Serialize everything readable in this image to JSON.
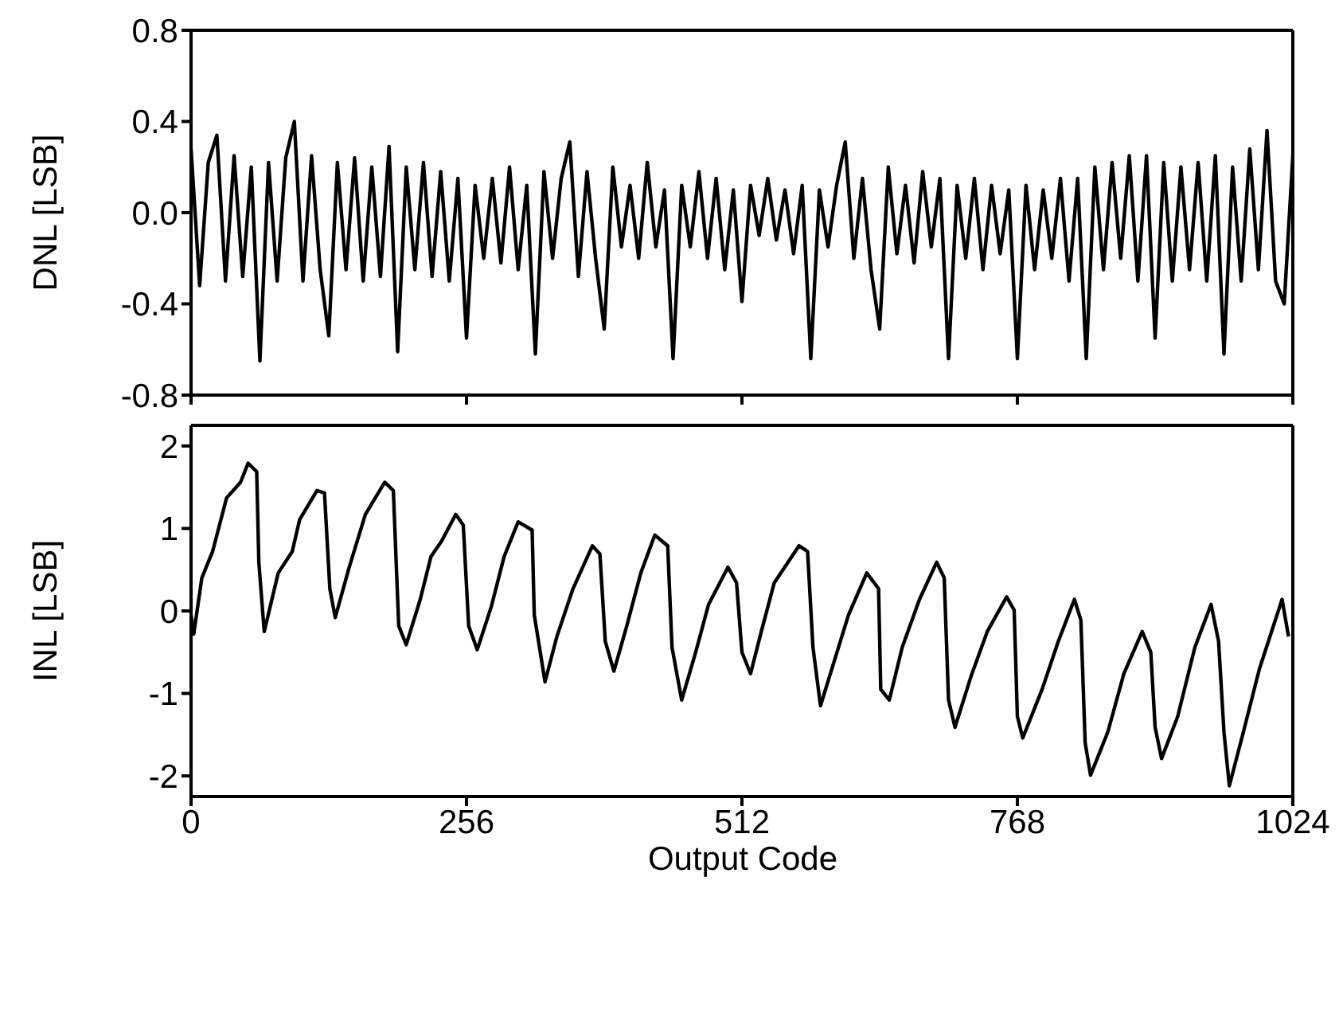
{
  "chart_data": [
    {
      "type": "line",
      "ylabel": "DNL [LSB]",
      "tick_labels": "y",
      "x": [
        0,
        8,
        16,
        24,
        32,
        40,
        48,
        56,
        64,
        72,
        80,
        88,
        96,
        104,
        112,
        120,
        128,
        136,
        144,
        152,
        160,
        168,
        176,
        184,
        192,
        200,
        208,
        216,
        224,
        232,
        240,
        248,
        256,
        264,
        272,
        280,
        288,
        296,
        304,
        312,
        320,
        328,
        336,
        344,
        352,
        360,
        368,
        376,
        384,
        392,
        400,
        408,
        416,
        424,
        432,
        440,
        448,
        456,
        464,
        472,
        480,
        488,
        496,
        504,
        512,
        520,
        528,
        536,
        544,
        552,
        560,
        568,
        576,
        584,
        592,
        600,
        608,
        616,
        624,
        632,
        640,
        648,
        656,
        664,
        672,
        680,
        688,
        696,
        704,
        712,
        720,
        728,
        736,
        744,
        752,
        760,
        768,
        776,
        784,
        792,
        800,
        808,
        816,
        824,
        832,
        840,
        848,
        856,
        864,
        872,
        880,
        888,
        896,
        904,
        912,
        920,
        928,
        936,
        944,
        952,
        960,
        968,
        976,
        984,
        992,
        1000,
        1008,
        1016,
        1024
      ],
      "series": [
        {
          "color": "#000000",
          "values": [
            0.28,
            -0.32,
            0.22,
            0.34,
            -0.3,
            0.25,
            -0.28,
            0.2,
            -0.65,
            0.22,
            -0.3,
            0.24,
            0.4,
            -0.3,
            0.25,
            -0.25,
            -0.54,
            0.22,
            -0.25,
            0.24,
            -0.3,
            0.2,
            -0.28,
            0.29,
            -0.61,
            0.2,
            -0.25,
            0.22,
            -0.28,
            0.18,
            -0.3,
            0.15,
            -0.55,
            0.12,
            -0.2,
            0.15,
            -0.22,
            0.2,
            -0.25,
            0.12,
            -0.62,
            0.18,
            -0.2,
            0.15,
            0.31,
            -0.28,
            0.18,
            -0.2,
            -0.51,
            0.2,
            -0.15,
            0.12,
            -0.2,
            0.22,
            -0.15,
            0.1,
            -0.64,
            0.12,
            -0.15,
            0.18,
            -0.2,
            0.15,
            -0.25,
            0.1,
            -0.39,
            0.12,
            -0.1,
            0.15,
            -0.12,
            0.1,
            -0.18,
            0.12,
            -0.64,
            0.1,
            -0.15,
            0.12,
            0.31,
            -0.2,
            0.15,
            -0.25,
            -0.51,
            0.2,
            -0.18,
            0.12,
            -0.22,
            0.18,
            -0.15,
            0.15,
            -0.64,
            0.12,
            -0.2,
            0.15,
            -0.25,
            0.12,
            -0.18,
            0.1,
            -0.64,
            0.12,
            -0.25,
            0.1,
            -0.2,
            0.15,
            -0.3,
            0.15,
            -0.64,
            0.2,
            -0.25,
            0.22,
            -0.2,
            0.25,
            -0.3,
            0.25,
            -0.55,
            0.22,
            -0.3,
            0.2,
            -0.25,
            0.22,
            -0.3,
            0.25,
            -0.62,
            0.2,
            -0.3,
            0.28,
            -0.25,
            0.36,
            -0.3,
            -0.4,
            0.25
          ]
        }
      ],
      "xlim": [
        0,
        1024
      ],
      "xticks": [
        0,
        256,
        512,
        768,
        1024
      ],
      "ylim": [
        -0.8,
        0.8
      ],
      "yticks": [
        {
          "value": -0.8,
          "label": "-0.8"
        },
        {
          "value": -0.4,
          "label": "-0.4"
        },
        {
          "value": 0,
          "label": "0.0"
        },
        {
          "value": 0.4,
          "label": "0.4"
        },
        {
          "value": 0.8,
          "label": "0.8"
        }
      ]
    },
    {
      "type": "line",
      "ylabel": "INL [LSB]",
      "xlabel": "Output Code",
      "x": [
        0,
        2.5,
        10,
        20,
        33,
        46,
        53,
        61,
        63,
        68,
        81,
        94,
        101,
        117,
        124,
        129,
        134,
        147,
        162,
        180,
        188,
        193,
        200,
        213,
        223,
        233,
        246,
        253,
        258,
        266,
        279,
        291,
        304,
        317,
        319,
        329,
        340,
        355,
        373,
        380,
        385,
        393,
        405,
        418,
        431,
        443,
        447,
        456,
        469,
        481,
        499,
        507,
        512,
        520,
        530,
        542,
        565,
        573,
        578,
        585,
        598,
        611,
        628,
        639,
        641,
        649,
        661,
        677,
        693,
        700,
        704,
        710,
        725,
        740,
        758,
        765,
        768,
        773,
        791,
        806,
        821,
        827,
        831,
        836,
        852,
        867,
        884,
        892,
        896,
        902,
        917,
        933,
        948,
        955,
        960,
        965,
        978,
        993,
        1014,
        1020
      ],
      "series": [
        {
          "color": "#000000",
          "values": [
            -0.05,
            -0.28,
            0.4,
            0.72,
            1.37,
            1.56,
            1.79,
            1.69,
            0.59,
            -0.25,
            0.46,
            0.72,
            1.11,
            1.46,
            1.43,
            0.27,
            -0.08,
            0.53,
            1.17,
            1.56,
            1.46,
            -0.18,
            -0.41,
            0.14,
            0.66,
            0.85,
            1.17,
            1.04,
            -0.18,
            -0.47,
            0.05,
            0.66,
            1.08,
            0.98,
            -0.05,
            -0.86,
            -0.31,
            0.27,
            0.79,
            0.69,
            -0.37,
            -0.73,
            -0.18,
            0.46,
            0.92,
            0.79,
            -0.44,
            -1.08,
            -0.5,
            0.08,
            0.53,
            0.34,
            -0.5,
            -0.76,
            -0.25,
            0.34,
            0.79,
            0.72,
            -0.44,
            -1.15,
            -0.6,
            -0.05,
            0.46,
            0.27,
            -0.95,
            -1.08,
            -0.44,
            0.14,
            0.59,
            0.4,
            -1.08,
            -1.41,
            -0.79,
            -0.25,
            0.17,
            0.01,
            -1.28,
            -1.54,
            -0.95,
            -0.37,
            0.14,
            -0.11,
            -1.6,
            -1.99,
            -1.47,
            -0.76,
            -0.25,
            -0.5,
            -1.41,
            -1.79,
            -1.28,
            -0.44,
            0.08,
            -0.37,
            -1.47,
            -2.12,
            -1.47,
            -0.7,
            0.14,
            -0.31
          ]
        }
      ],
      "xlim": [
        0,
        1024
      ],
      "xticks": [
        0,
        256,
        512,
        768,
        1024
      ],
      "ylim": [
        -2.25,
        2.25
      ],
      "yticks": [
        -2,
        -1,
        0,
        1,
        2
      ]
    }
  ]
}
